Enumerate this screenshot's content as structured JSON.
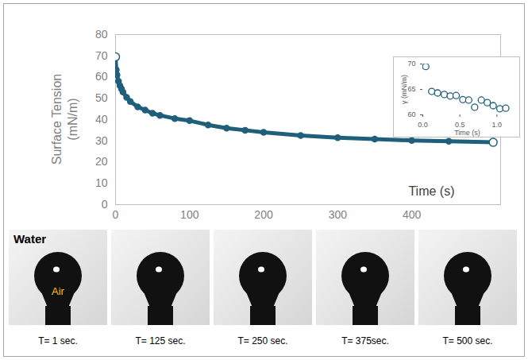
{
  "chart_data": [
    {
      "type": "line",
      "ylabel": "Surface Tension (mN/m)",
      "xlabel": "Time (s)",
      "x": [
        0,
        1,
        2,
        4,
        6,
        8,
        10,
        15,
        20,
        30,
        40,
        50,
        60,
        80,
        100,
        125,
        150,
        175,
        200,
        250,
        300,
        350,
        400,
        450,
        510
      ],
      "values": [
        69.5,
        63.5,
        61,
        58,
        56,
        54.5,
        53,
        50.5,
        48.5,
        46,
        44.5,
        43,
        42,
        40.5,
        39.5,
        37.5,
        36,
        35,
        34,
        32.5,
        31.5,
        30.8,
        30.2,
        29.8,
        29.3
      ],
      "color": "#1f5f7c",
      "marker": "circle",
      "line_style": "solid",
      "xlim": [
        0,
        520
      ],
      "xticks": [
        0,
        100,
        200,
        300,
        400
      ],
      "ylim": [
        0,
        80
      ],
      "yticks": [
        0,
        10,
        20,
        30,
        40,
        50,
        60,
        70,
        80
      ],
      "grid": false
    },
    {
      "type": "scatter",
      "ylabel": "γ (mN/m)",
      "xlabel": "Time (s)",
      "x": [
        0.04,
        0.12,
        0.2,
        0.29,
        0.37,
        0.45,
        0.54,
        0.62,
        0.7,
        0.79,
        0.87,
        0.95,
        1.04,
        1.12
      ],
      "values": [
        69.5,
        64.6,
        64.3,
        64.0,
        63.7,
        63.8,
        63.0,
        62.9,
        61.5,
        62.9,
        62.4,
        61.8,
        61.2,
        61.3
      ],
      "color": "#1f5f7c",
      "marker": "circle",
      "xlim": [
        0,
        1.2
      ],
      "xticks": [
        0,
        0.5,
        1
      ],
      "ylim": [
        60,
        70
      ],
      "yticks": [
        60,
        65,
        70
      ],
      "grid": false
    }
  ],
  "photos": {
    "medium_label": "Water",
    "bubble_label": "Air",
    "captions": [
      "T= 1 sec.",
      "T= 125 sec.",
      "T= 250 sec.",
      "T= 375sec.",
      "T= 500 sec."
    ]
  }
}
